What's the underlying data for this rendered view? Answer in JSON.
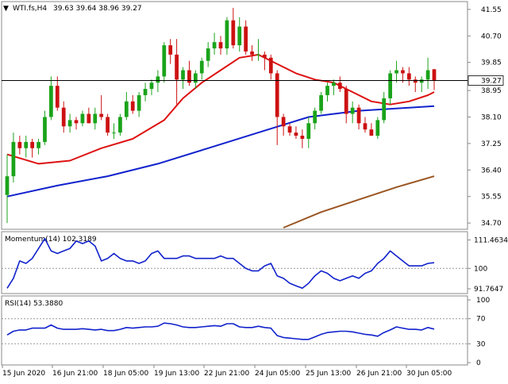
{
  "header": {
    "symbol_label": "WTI.fs,H4",
    "ohlc_values": "39.63 39.64 38.96 39.27",
    "collapse_glyph": "▼"
  },
  "chart_data": [
    {
      "type": "candlestick",
      "title": "WTI.fs,H4",
      "ylim": [
        34.55,
        41.75
      ],
      "yticks": [
        "41.55",
        "40.70",
        "39.85",
        "38.95",
        "38.10",
        "37.25",
        "36.40",
        "35.55",
        "34.70"
      ],
      "current_price": "39.27",
      "colors": {
        "bull": "#1aa31a",
        "bear": "#cc1111",
        "ma_fast": "#dd1111",
        "ma_mid": "#1122cc",
        "ma_slow": "#9a5522",
        "hline": "#000000"
      },
      "candles": [
        [
          35.6,
          36.9,
          34.7,
          36.2
        ],
        [
          36.2,
          37.6,
          36.0,
          37.3
        ],
        [
          37.3,
          37.5,
          36.9,
          37.1
        ],
        [
          37.1,
          37.5,
          36.8,
          37.3
        ],
        [
          37.3,
          37.4,
          36.8,
          37.1
        ],
        [
          37.1,
          37.4,
          36.9,
          37.3
        ],
        [
          37.3,
          38.3,
          37.2,
          38.1
        ],
        [
          38.1,
          39.4,
          38.0,
          39.1
        ],
        [
          39.1,
          39.4,
          38.3,
          38.4
        ],
        [
          38.4,
          38.6,
          37.6,
          37.8
        ],
        [
          37.8,
          38.2,
          37.6,
          38.0
        ],
        [
          38.0,
          38.1,
          37.7,
          37.9
        ],
        [
          37.9,
          38.3,
          37.8,
          38.2
        ],
        [
          38.2,
          38.4,
          37.9,
          37.9
        ],
        [
          37.9,
          38.4,
          37.7,
          38.2
        ],
        [
          38.2,
          38.8,
          38.0,
          38.1
        ],
        [
          38.1,
          38.2,
          37.5,
          37.6
        ],
        [
          37.6,
          37.9,
          37.4,
          37.6
        ],
        [
          37.6,
          38.2,
          37.5,
          38.1
        ],
        [
          38.1,
          38.9,
          38.0,
          38.6
        ],
        [
          38.6,
          38.8,
          38.2,
          38.3
        ],
        [
          38.3,
          38.9,
          38.1,
          38.8
        ],
        [
          38.8,
          39.2,
          38.6,
          39.0
        ],
        [
          39.0,
          39.3,
          38.8,
          39.2
        ],
        [
          39.2,
          39.6,
          38.9,
          39.4
        ],
        [
          39.4,
          40.5,
          39.2,
          40.4
        ],
        [
          40.4,
          40.6,
          39.8,
          40.1
        ],
        [
          40.1,
          40.6,
          38.5,
          39.3
        ],
        [
          39.3,
          39.7,
          39.0,
          39.6
        ],
        [
          39.6,
          39.9,
          39.1,
          39.2
        ],
        [
          39.2,
          39.6,
          39.0,
          39.5
        ],
        [
          39.5,
          40.0,
          39.3,
          39.9
        ],
        [
          39.9,
          40.5,
          39.7,
          40.3
        ],
        [
          40.3,
          40.8,
          40.1,
          40.5
        ],
        [
          40.5,
          40.7,
          40.1,
          40.3
        ],
        [
          40.3,
          41.3,
          40.1,
          41.2
        ],
        [
          41.2,
          41.6,
          40.3,
          40.4
        ],
        [
          40.4,
          41.3,
          40.2,
          41.0
        ],
        [
          41.0,
          41.2,
          40.1,
          40.2
        ],
        [
          40.2,
          40.4,
          39.9,
          40.1
        ],
        [
          40.1,
          40.6,
          39.9,
          40.1
        ],
        [
          40.1,
          40.2,
          39.6,
          40.0
        ],
        [
          40.0,
          40.1,
          39.3,
          39.5
        ],
        [
          39.5,
          39.6,
          37.2,
          38.1
        ],
        [
          38.1,
          38.2,
          37.5,
          37.8
        ],
        [
          37.8,
          37.9,
          37.5,
          37.6
        ],
        [
          37.6,
          37.8,
          37.4,
          37.5
        ],
        [
          37.5,
          37.7,
          37.1,
          37.4
        ],
        [
          37.4,
          38.1,
          37.1,
          37.9
        ],
        [
          37.9,
          38.4,
          37.7,
          38.3
        ],
        [
          38.3,
          38.9,
          38.2,
          38.8
        ],
        [
          38.8,
          39.2,
          38.6,
          39.1
        ],
        [
          39.1,
          39.3,
          38.8,
          39.2
        ],
        [
          39.2,
          39.4,
          38.9,
          39.0
        ],
        [
          39.0,
          39.1,
          37.9,
          38.2
        ],
        [
          38.2,
          38.6,
          37.9,
          38.4
        ],
        [
          38.4,
          38.5,
          37.7,
          37.9
        ],
        [
          37.9,
          38.1,
          37.6,
          37.7
        ],
        [
          37.7,
          37.9,
          37.5,
          37.5
        ],
        [
          37.5,
          38.1,
          37.4,
          38.0
        ],
        [
          38.0,
          38.9,
          37.9,
          38.7
        ],
        [
          38.7,
          39.6,
          38.5,
          39.5
        ],
        [
          39.5,
          39.9,
          39.2,
          39.6
        ],
        [
          39.6,
          39.7,
          39.2,
          39.5
        ],
        [
          39.5,
          39.7,
          39.1,
          39.3
        ],
        [
          39.3,
          39.4,
          38.9,
          39.2
        ],
        [
          39.2,
          39.4,
          38.9,
          39.3
        ],
        [
          39.3,
          40.0,
          39.0,
          39.6
        ],
        [
          39.63,
          39.64,
          38.96,
          39.27
        ]
      ],
      "ma_fast": [
        [
          0,
          36.9
        ],
        [
          5,
          36.6
        ],
        [
          10,
          36.7
        ],
        [
          15,
          37.1
        ],
        [
          20,
          37.4
        ],
        [
          25,
          38.0
        ],
        [
          28,
          38.7
        ],
        [
          31,
          39.2
        ],
        [
          34,
          39.6
        ],
        [
          37,
          40.0
        ],
        [
          40,
          40.1
        ],
        [
          43,
          39.8
        ],
        [
          46,
          39.5
        ],
        [
          49,
          39.3
        ],
        [
          52,
          39.2
        ],
        [
          55,
          38.9
        ],
        [
          58,
          38.6
        ],
        [
          61,
          38.5
        ],
        [
          64,
          38.6
        ],
        [
          67,
          38.8
        ],
        [
          68,
          38.9
        ]
      ],
      "ma_mid": [
        [
          0,
          35.55
        ],
        [
          8,
          35.9
        ],
        [
          16,
          36.2
        ],
        [
          24,
          36.6
        ],
        [
          32,
          37.1
        ],
        [
          40,
          37.6
        ],
        [
          48,
          38.1
        ],
        [
          56,
          38.3
        ],
        [
          64,
          38.4
        ],
        [
          68,
          38.45
        ]
      ],
      "ma_slow": [
        [
          44,
          34.55
        ],
        [
          50,
          35.05
        ],
        [
          56,
          35.45
        ],
        [
          62,
          35.85
        ],
        [
          68,
          36.2
        ]
      ]
    },
    {
      "type": "line",
      "title": "Momentum(14) 102.3189",
      "ylim": [
        90.5,
        113.5
      ],
      "yticks": [
        "111.4634",
        "100",
        "91.7647"
      ],
      "reference_line": 100,
      "color": "#1122cc",
      "values": [
        92,
        96,
        103,
        102,
        104,
        108,
        112,
        107,
        106,
        107,
        108,
        111,
        110,
        111,
        109,
        103,
        104,
        106,
        104,
        103,
        103,
        102,
        103,
        106,
        107,
        104,
        104,
        104,
        105,
        105,
        104,
        104,
        104,
        104,
        105,
        104,
        104,
        102,
        100,
        99,
        99,
        101,
        102,
        97,
        96,
        94,
        93,
        92,
        94,
        97,
        99,
        98,
        96,
        95,
        96,
        97,
        96,
        98,
        99,
        102,
        104,
        107,
        105,
        103,
        101,
        101,
        101,
        102,
        102.3
      ]
    },
    {
      "type": "line",
      "title": "RSI(14) 53.3880",
      "ylim": [
        0,
        100
      ],
      "yticks": [
        "100",
        "70",
        "30",
        "0"
      ],
      "reference_lines": [
        70,
        30
      ],
      "color": "#1122cc",
      "values": [
        44,
        50,
        52,
        52,
        55,
        55,
        55,
        60,
        55,
        53,
        53,
        53,
        54,
        53,
        52,
        53,
        51,
        51,
        53,
        56,
        55,
        56,
        57,
        57,
        58,
        63,
        62,
        60,
        57,
        56,
        56,
        57,
        58,
        59,
        58,
        62,
        62,
        57,
        56,
        56,
        58,
        56,
        55,
        43,
        40,
        39,
        38,
        37,
        37,
        41,
        45,
        48,
        49,
        50,
        50,
        49,
        47,
        45,
        44,
        42,
        48,
        52,
        57,
        55,
        53,
        53,
        52,
        56,
        53.4
      ]
    },
    {
      "type": "time-axis",
      "labels": [
        "15 Jun 2020",
        "16 Jun 21:00",
        "18 Jun 05:00",
        "19 Jun 13:00",
        "22 Jun 21:00",
        "24 Jun 05:00",
        "25 Jun 13:00",
        "26 Jun 21:00",
        "30 Jun 05:00"
      ]
    }
  ]
}
